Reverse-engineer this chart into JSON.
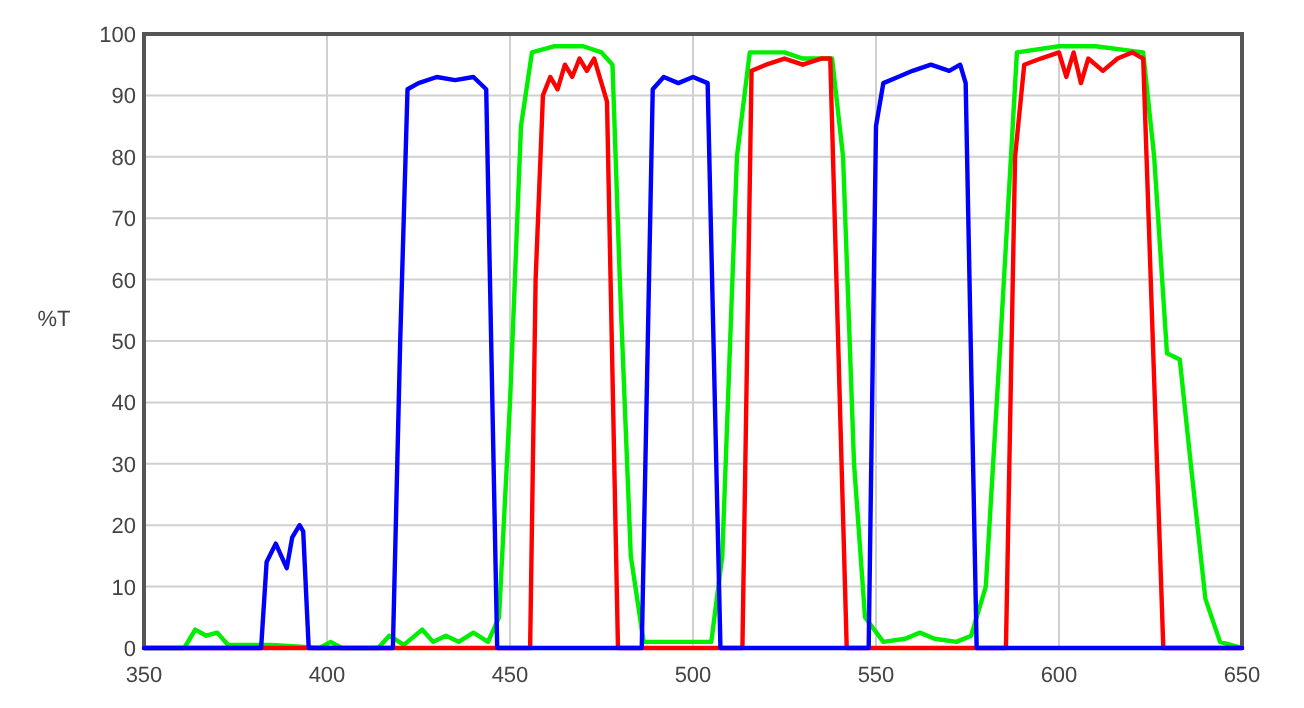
{
  "chart_data": {
    "type": "line",
    "ylabel": "%T",
    "xlim": [
      350,
      650
    ],
    "ylim": [
      0,
      100
    ],
    "xticks": [
      350,
      400,
      450,
      500,
      550,
      600,
      650
    ],
    "yticks": [
      0,
      10,
      20,
      30,
      40,
      50,
      60,
      70,
      80,
      90,
      100
    ],
    "grid": true,
    "line_style": "solid",
    "series": [
      {
        "color": "#00ee00",
        "x": [
          350,
          361,
          364,
          367,
          370,
          373,
          385,
          398,
          401,
          404,
          414,
          417,
          421,
          426,
          429,
          432.5,
          436,
          440,
          444,
          447,
          450,
          453,
          456,
          462,
          470,
          475,
          478,
          480,
          483,
          486.5,
          505,
          508,
          512,
          515.5,
          525,
          530,
          538,
          541,
          544,
          547,
          552,
          558,
          562,
          566,
          572,
          576,
          580,
          584,
          588.5,
          600,
          610,
          623,
          626,
          629.5,
          633,
          636,
          640,
          644,
          650
        ],
        "values": [
          0,
          0,
          3,
          2,
          2.5,
          0.5,
          0.5,
          0,
          1,
          0,
          0,
          2,
          0.5,
          3,
          1,
          2,
          1,
          2.5,
          1,
          5,
          40,
          85,
          97,
          98,
          98,
          97,
          95,
          60,
          15,
          1,
          1,
          15,
          80,
          97,
          97,
          96,
          96,
          80,
          30,
          5,
          1,
          1.5,
          2.5,
          1.5,
          1,
          2,
          10,
          50,
          97,
          98,
          98,
          97,
          80,
          48,
          47,
          30,
          8,
          1,
          0
        ]
      },
      {
        "color": "#ff0000",
        "x": [
          350,
          455.5,
          457,
          459,
          461,
          463,
          465,
          467,
          469,
          471,
          473,
          475,
          476.5,
          479.5,
          513.5,
          516,
          520,
          525,
          530,
          535,
          537.5,
          542,
          585.5,
          588,
          590.5,
          595,
          600,
          602,
          604,
          606,
          608,
          612,
          616,
          620,
          623,
          628.5,
          650
        ],
        "values": [
          0,
          0,
          60,
          90,
          93,
          91,
          95,
          93,
          96,
          94,
          96,
          92,
          89,
          0,
          0,
          94,
          95,
          96,
          95,
          96,
          96,
          0,
          0,
          80,
          95,
          96,
          97,
          93,
          97,
          92,
          96,
          94,
          96,
          97,
          96,
          0,
          0
        ]
      },
      {
        "color": "#0000ff",
        "x": [
          350,
          382,
          383.5,
          386,
          387.5,
          389,
          390.5,
          392.5,
          393.5,
          395,
          418,
          420,
          422,
          425,
          430,
          435,
          440,
          443.5,
          446.5,
          486,
          489,
          492,
          496,
          500,
          504,
          507.5,
          548,
          550,
          552,
          556,
          560,
          565,
          570,
          573,
          574.5,
          577.5,
          650
        ],
        "values": [
          0,
          0,
          14,
          17,
          15,
          13,
          18,
          20,
          19,
          0,
          0,
          50,
          91,
          92,
          93,
          92.5,
          93,
          91,
          0,
          0,
          91,
          93,
          92,
          93,
          92,
          0,
          0,
          85,
          92,
          93,
          94,
          95,
          94,
          95,
          92,
          0,
          0
        ]
      }
    ]
  }
}
